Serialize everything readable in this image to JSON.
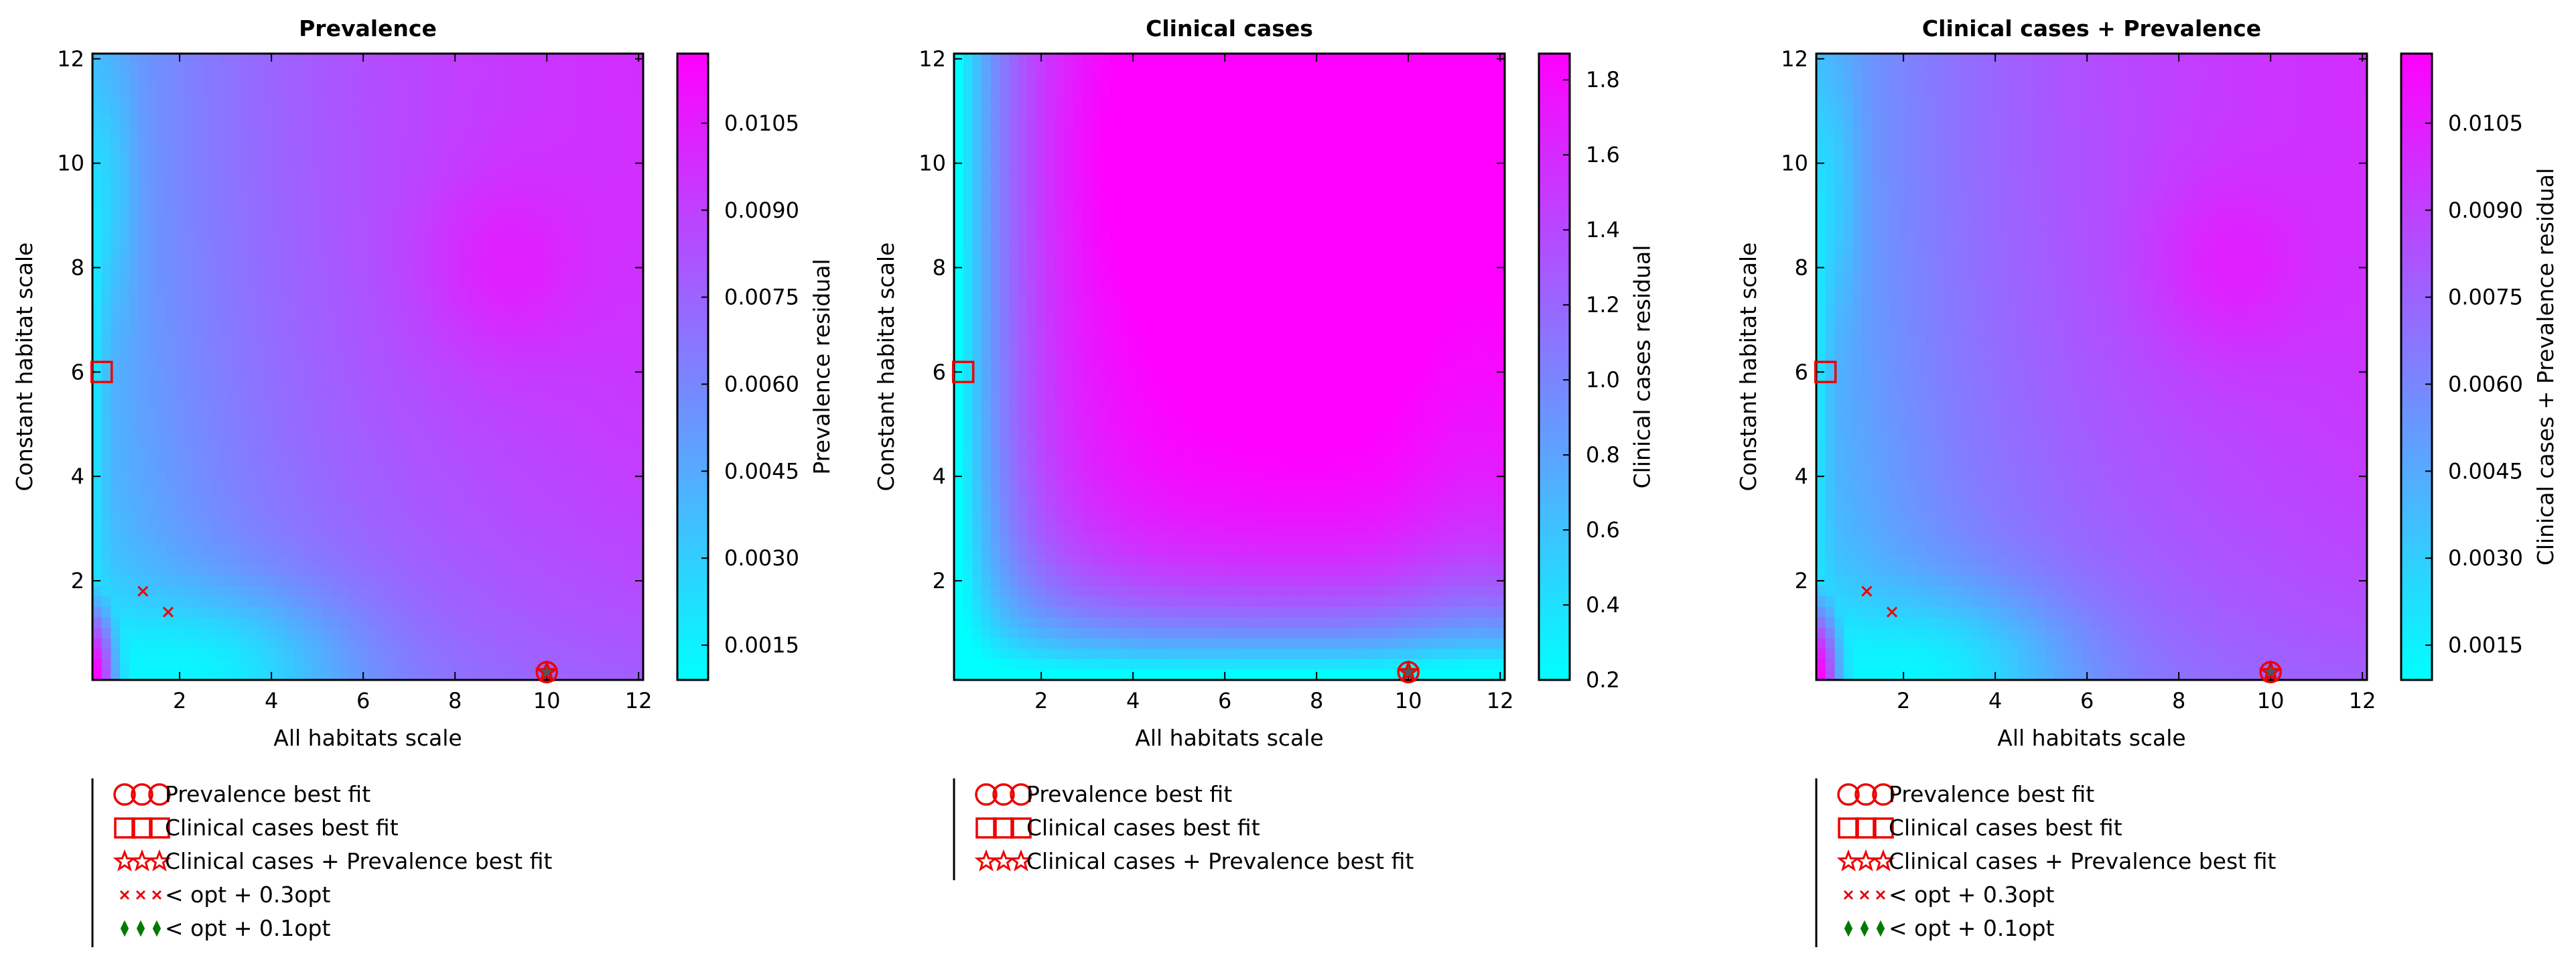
{
  "chart_data": [
    {
      "type": "heatmap",
      "title": "Prevalence",
      "xlabel": "All habitats scale",
      "ylabel": "Constant habitat scale",
      "xlim": [
        0.1,
        12.1
      ],
      "ylim": [
        0.1,
        12.1
      ],
      "xticks": [
        "2",
        "4",
        "6",
        "8",
        "10",
        "12"
      ],
      "yticks": [
        "2",
        "4",
        "6",
        "8",
        "10",
        "12"
      ],
      "colorbar": {
        "label": "Prevalence residual",
        "range": [
          0.0009,
          0.0117
        ],
        "ticks": [
          "0.0015",
          "0.0030",
          "0.0045",
          "0.0060",
          "0.0075",
          "0.0090",
          "0.0105"
        ],
        "tick_values": [
          0.0015,
          0.003,
          0.0045,
          0.006,
          0.0075,
          0.009,
          0.0105
        ],
        "colormap": [
          "#00ffff",
          "#ff00ff"
        ]
      },
      "surface_model": "prevalence",
      "markers": [
        {
          "type": "circle",
          "x": 10.0,
          "y": 0.25
        },
        {
          "type": "square",
          "x": 0.3,
          "y": 6.0
        },
        {
          "type": "star",
          "x": 10.0,
          "y": 0.25
        },
        {
          "type": "x",
          "x": 1.2,
          "y": 1.8
        },
        {
          "type": "x",
          "x": 1.75,
          "y": 1.4
        }
      ],
      "legend": [
        {
          "marker": "circle",
          "label": "Prevalence best fit"
        },
        {
          "marker": "square",
          "label": "Clinical cases best fit"
        },
        {
          "marker": "star",
          "label": "Clinical cases + Prevalence best fit"
        },
        {
          "marker": "x",
          "label": "< opt + 0.3opt"
        },
        {
          "marker": "diamond",
          "label": "< opt + 0.1opt"
        }
      ],
      "legend_position": "below"
    },
    {
      "type": "heatmap",
      "title": "Clinical cases",
      "xlabel": "All habitats scale",
      "ylabel": "Constant habitat scale",
      "xlim": [
        0.1,
        12.1
      ],
      "ylim": [
        0.1,
        12.1
      ],
      "xticks": [
        "2",
        "4",
        "6",
        "8",
        "10",
        "12"
      ],
      "yticks": [
        "2",
        "4",
        "6",
        "8",
        "10",
        "12"
      ],
      "colorbar": {
        "label": "Clinical cases residual",
        "range": [
          0.2,
          1.87
        ],
        "ticks": [
          "0.2",
          "0.4",
          "0.6",
          "0.8",
          "1.0",
          "1.2",
          "1.4",
          "1.6",
          "1.8"
        ],
        "tick_values": [
          0.2,
          0.4,
          0.6,
          0.8,
          1.0,
          1.2,
          1.4,
          1.6,
          1.8
        ],
        "colormap": [
          "#00ffff",
          "#ff00ff"
        ]
      },
      "surface_model": "clinical",
      "markers": [
        {
          "type": "circle",
          "x": 10.0,
          "y": 0.25
        },
        {
          "type": "square",
          "x": 0.3,
          "y": 6.0
        },
        {
          "type": "star",
          "x": 10.0,
          "y": 0.25
        }
      ],
      "legend": [
        {
          "marker": "circle",
          "label": "Prevalence best fit"
        },
        {
          "marker": "square",
          "label": "Clinical cases best fit"
        },
        {
          "marker": "star",
          "label": "Clinical cases + Prevalence best fit"
        }
      ],
      "legend_position": "below"
    },
    {
      "type": "heatmap",
      "title": "Clinical cases + Prevalence",
      "xlabel": "All habitats scale",
      "ylabel": "Constant habitat scale",
      "xlim": [
        0.1,
        12.1
      ],
      "ylim": [
        0.1,
        12.1
      ],
      "xticks": [
        "2",
        "4",
        "6",
        "8",
        "10",
        "12"
      ],
      "yticks": [
        "2",
        "4",
        "6",
        "8",
        "10",
        "12"
      ],
      "colorbar": {
        "label": "Clinical cases + Prevalence residual",
        "range": [
          0.0009,
          0.0117
        ],
        "ticks": [
          "0.0015",
          "0.0030",
          "0.0045",
          "0.0060",
          "0.0075",
          "0.0090",
          "0.0105"
        ],
        "tick_values": [
          0.0015,
          0.003,
          0.0045,
          0.006,
          0.0075,
          0.009,
          0.0105
        ],
        "colormap": [
          "#00ffff",
          "#ff00ff"
        ]
      },
      "surface_model": "prevalence",
      "markers": [
        {
          "type": "circle",
          "x": 10.0,
          "y": 0.25
        },
        {
          "type": "square",
          "x": 0.3,
          "y": 6.0
        },
        {
          "type": "star",
          "x": 10.0,
          "y": 0.25
        },
        {
          "type": "x",
          "x": 1.2,
          "y": 1.8
        },
        {
          "type": "x",
          "x": 1.75,
          "y": 1.4
        }
      ],
      "legend": [
        {
          "marker": "circle",
          "label": "Prevalence best fit"
        },
        {
          "marker": "square",
          "label": "Clinical cases best fit"
        },
        {
          "marker": "star",
          "label": "Clinical cases + Prevalence best fit"
        },
        {
          "marker": "x",
          "label": "< opt + 0.3opt"
        },
        {
          "marker": "diamond",
          "label": "< opt + 0.1opt"
        }
      ],
      "legend_position": "below"
    }
  ],
  "colors": {
    "marker_red": "#ee0000",
    "marker_green": "#007a00",
    "marker_star_fill": "#555555",
    "cmap_low": "#00ffff",
    "cmap_high": "#ff00ff"
  }
}
